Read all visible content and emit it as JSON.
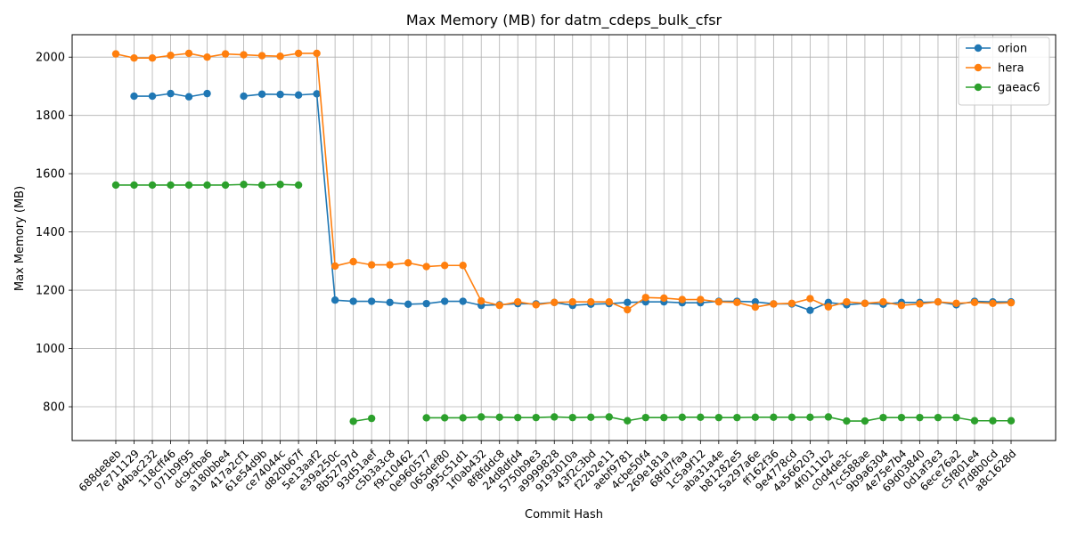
{
  "chart_data": {
    "type": "line",
    "title": "Max Memory (MB) for datm_cdeps_bulk_cfsr",
    "xlabel": "Commit Hash",
    "ylabel": "Max Memory (MB)",
    "ylim": [
      684,
      2077
    ],
    "yticks": [
      800,
      1000,
      1200,
      1400,
      1600,
      1800,
      2000
    ],
    "grid": true,
    "legend_position": "top-right",
    "categories": [
      "688de8eb",
      "7e711129",
      "d4bac232",
      "118cff46",
      "071b9f95",
      "dc9cfba6",
      "a180bbe4",
      "417a2cf1",
      "61e54d9b",
      "ce74044c",
      "d820b67f",
      "5e13aaf2",
      "e39a250c",
      "8b52797d",
      "93d51aef",
      "c5b3a3c8",
      "f9c10462",
      "0e960577",
      "065def80",
      "995c51d1",
      "1f0ab432",
      "8f8fddc8",
      "24d8dfd4",
      "5750b9e3",
      "a9999828",
      "9193010a",
      "43f2c3bd",
      "f22b2e11",
      "aebf9781",
      "4cbe50f4",
      "269e181a",
      "68fd7faa",
      "1c5a9f12",
      "aba31a4e",
      "b81282e5",
      "5a297a6e",
      "ff162f36",
      "9e4778cd",
      "4a566203",
      "4f0111b2",
      "c0d4de3c",
      "7cc588ae",
      "9b9a6304",
      "4e75e7b4",
      "69d03840",
      "0d1af3e3",
      "6ece76a2",
      "c5f801e4",
      "f7d8b0cd",
      "a8c1628d"
    ],
    "series": [
      {
        "name": "orion",
        "color": "#1f77b4",
        "values": [
          null,
          1866,
          1866,
          1875,
          1864,
          1875,
          null,
          1866,
          1873,
          1872,
          1870,
          1874,
          1166,
          1162,
          1162,
          1158,
          1152,
          1154,
          1162,
          1162,
          1148,
          1150,
          1154,
          1153,
          1158,
          1148,
          1152,
          1154,
          1158,
          1160,
          1160,
          1157,
          1157,
          1162,
          1162,
          1160,
          1153,
          1153,
          1131,
          1158,
          1150,
          1155,
          1152,
          1158,
          1158,
          1160,
          1150,
          1162,
          1160,
          1160
        ]
      },
      {
        "name": "hera",
        "color": "#ff7f0e",
        "values": [
          2011,
          1997,
          1997,
          2006,
          2013,
          2000,
          2011,
          2008,
          2005,
          2003,
          2013,
          2013,
          1283,
          1298,
          1287,
          1287,
          1294,
          1281,
          1285,
          1285,
          1163,
          1148,
          1160,
          1150,
          1158,
          1160,
          1160,
          1160,
          1133,
          1175,
          1173,
          1168,
          1168,
          1160,
          1158,
          1142,
          1153,
          1155,
          1171,
          1143,
          1160,
          1155,
          1160,
          1148,
          1153,
          1160,
          1155,
          1158,
          1155,
          1157
        ]
      },
      {
        "name": "gaeac6",
        "color": "#2ca02c",
        "values": [
          1561,
          1561,
          1561,
          1561,
          1561,
          1561,
          1561,
          1563,
          1561,
          1563,
          1561,
          null,
          null,
          750,
          760,
          null,
          null,
          762,
          762,
          762,
          765,
          764,
          763,
          763,
          765,
          763,
          764,
          765,
          752,
          763,
          763,
          764,
          764,
          763,
          763,
          764,
          764,
          764,
          764,
          765,
          751,
          751,
          763,
          763,
          763,
          763,
          763,
          752,
          752,
          752
        ]
      }
    ]
  }
}
